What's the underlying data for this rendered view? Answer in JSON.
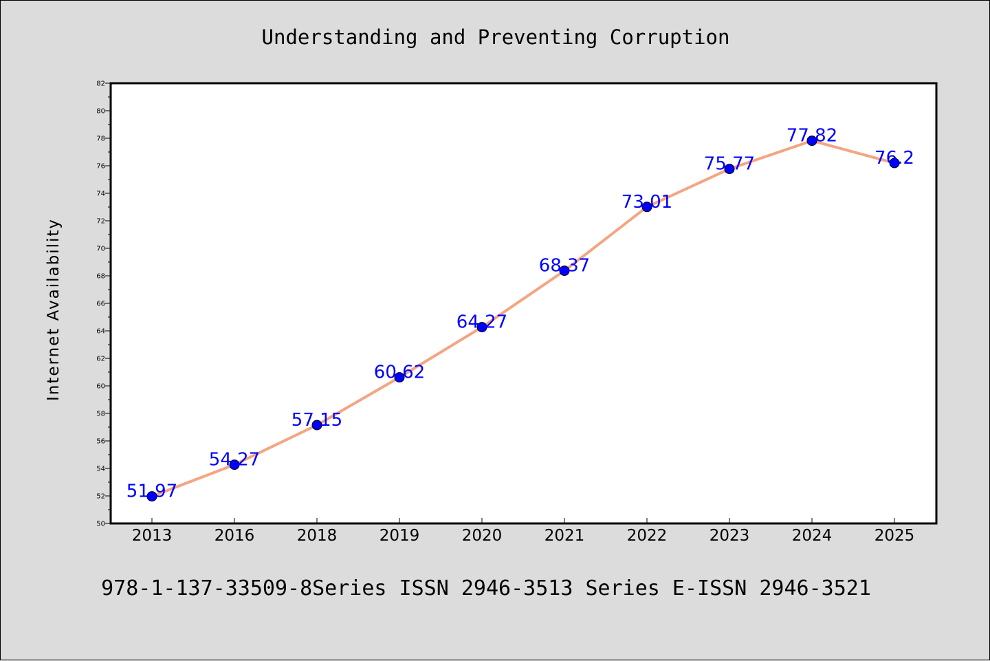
{
  "chart_data": {
    "type": "line",
    "title": "Understanding and Preventing Corruption",
    "ylabel": "Internet Availability",
    "xlabel": "",
    "categories": [
      "2013",
      "2016",
      "2018",
      "2019",
      "2020",
      "2021",
      "2022",
      "2023",
      "2024",
      "2025"
    ],
    "values": [
      51.97,
      54.27,
      57.15,
      60.62,
      64.27,
      68.37,
      73.01,
      75.77,
      77.82,
      76.2
    ],
    "value_labels": [
      "51.97",
      "54.27",
      "57.15",
      "60.62",
      "64.27",
      "68.37",
      "73.01",
      "75.77",
      "77.82",
      "76.2"
    ],
    "ylim": [
      50,
      82
    ],
    "yticks": [
      "50",
      "52",
      "54",
      "56",
      "58",
      "60",
      "62",
      "64",
      "66",
      "68",
      "70",
      "72",
      "74",
      "76",
      "78",
      "80",
      "82"
    ],
    "grid": false,
    "legend": false,
    "colors": {
      "line": "#f4a582",
      "marker": "#0000ff",
      "label": "#0000ff",
      "background": "#dcdcdc",
      "plot_bg": "#ffffff"
    }
  },
  "footer": {
    "text": "978-1-137-33509-8Series ISSN 2946-3513 Series E-ISSN 2946-3521"
  }
}
